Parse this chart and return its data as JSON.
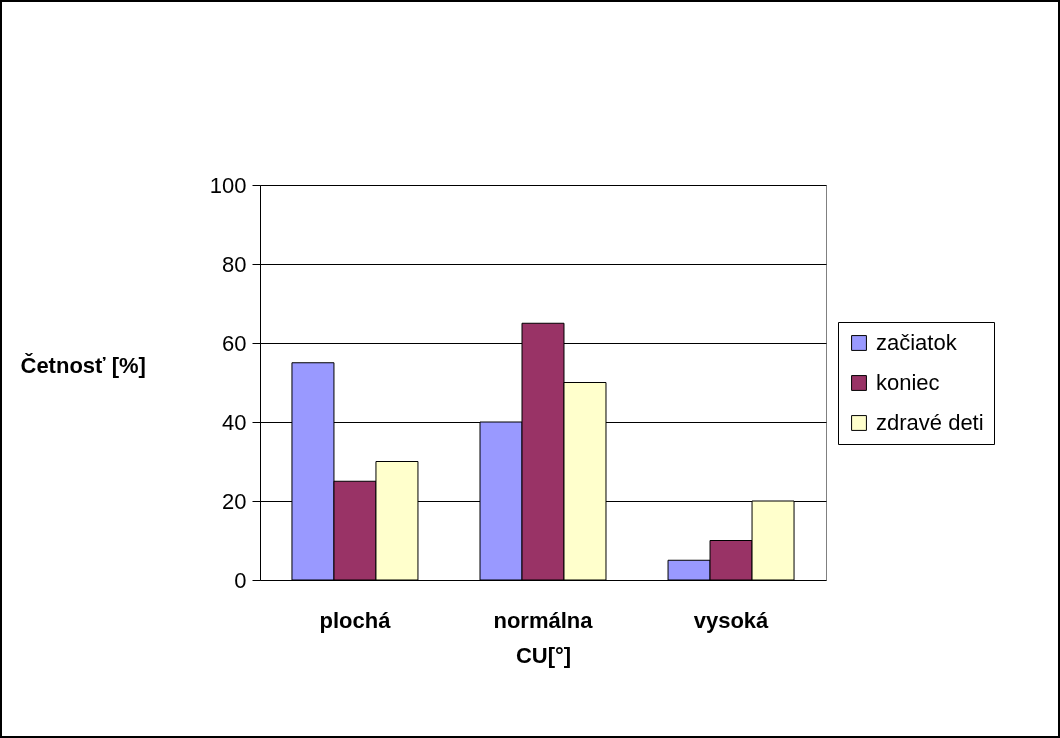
{
  "chart_data": {
    "type": "bar",
    "xlabel": "CU[°]",
    "ylabel": "Četnosť [%]",
    "categories": [
      "plochá",
      "normálna",
      "vysoká"
    ],
    "series": [
      {
        "name": "začiatok",
        "color": "#9999ff",
        "values": [
          55,
          40,
          5
        ]
      },
      {
        "name": "koniec",
        "color": "#993366",
        "values": [
          25,
          65,
          10
        ]
      },
      {
        "name": "zdravé deti",
        "color": "#ffffcc",
        "values": [
          30,
          50,
          20
        ]
      }
    ],
    "ylim": [
      0,
      100
    ],
    "yticks": [
      0,
      20,
      40,
      60,
      80,
      100
    ],
    "grid": "y",
    "legend": "right"
  }
}
